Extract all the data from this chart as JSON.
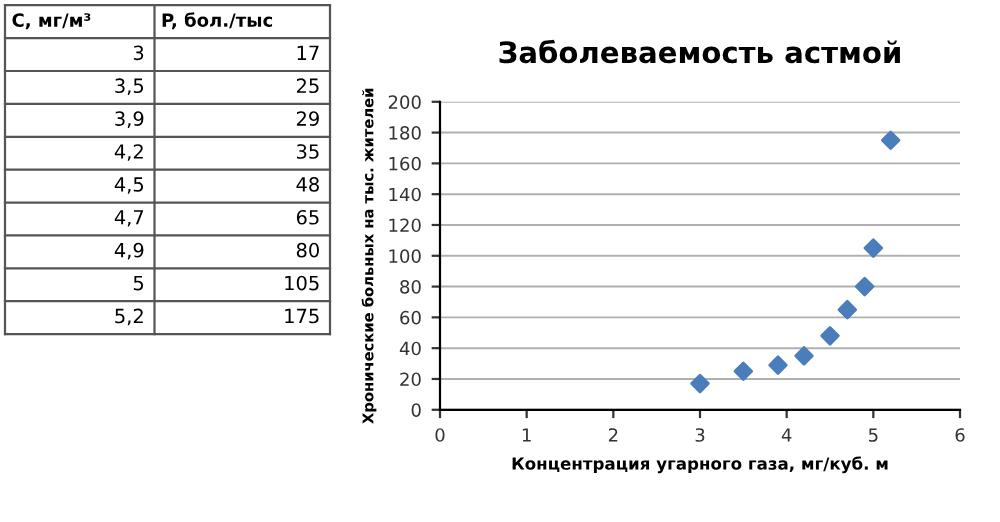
{
  "chart_data": [
    {
      "type": "other",
      "annotations": [
        "C, мг/м³",
        "P, бол./тыс",
        "3",
        "17",
        "3,5",
        "25",
        "3,9",
        "29",
        "4,2",
        "35",
        "4,5",
        "48",
        "4,7",
        "65",
        "4,9",
        "80",
        "5",
        "105",
        "5,2",
        "175"
      ]
    },
    {
      "type": "scatter",
      "title": "Заболеваемость астмой",
      "xlabel": "Концентрация угарного газа, мг/куб. м",
      "ylabel": "Хронические больных на тыс. жителей",
      "x": [
        3,
        3.5,
        3.9,
        4.2,
        4.5,
        4.7,
        4.9,
        5,
        5.2
      ],
      "values": [
        17,
        25,
        29,
        35,
        48,
        65,
        80,
        105,
        175
      ],
      "color": "#4a7ebb",
      "marker": "diamond",
      "xlim": [
        0,
        6
      ],
      "xticks": [
        0,
        1,
        2,
        3,
        4,
        5,
        6
      ],
      "ylim": [
        0,
        200
      ],
      "yticks": [
        0,
        20,
        40,
        60,
        80,
        100,
        120,
        140,
        160,
        180,
        200
      ],
      "grid": "y"
    }
  ]
}
